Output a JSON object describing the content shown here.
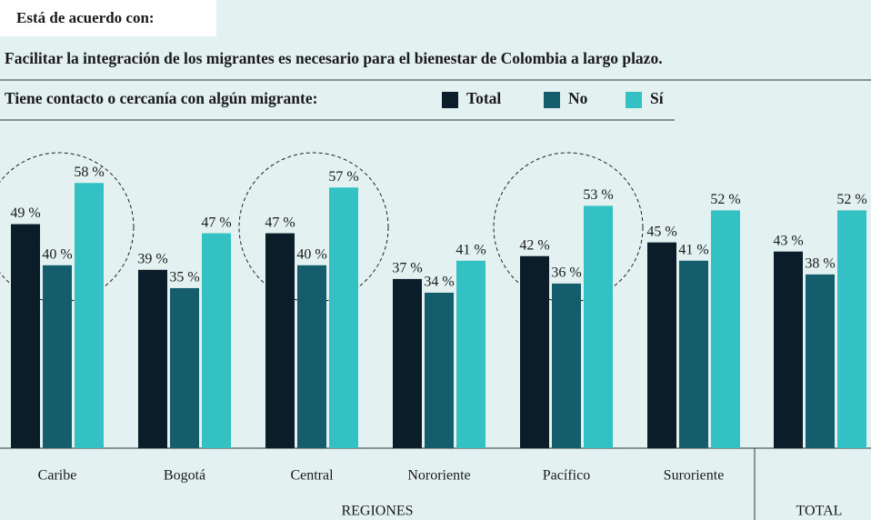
{
  "chart_data": {
    "type": "bar",
    "header": "Está de acuerdo con:",
    "title": "Facilitar la integración de los migrantes es necesario para el bienestar de Colombia a largo plazo.",
    "legend_title": "Tiene contacto o cercanía con algún migrante:",
    "categories": [
      "Caribe",
      "Bogotá",
      "Central",
      "Nororiente",
      "Pacífico",
      "Suroriente",
      null
    ],
    "group_labels": [
      "REGIONES",
      "TOTAL"
    ],
    "highlight": [
      0,
      2,
      4
    ],
    "ylim": [
      0,
      100
    ],
    "series": [
      {
        "name": "Total",
        "color": "#0b1d28",
        "values": [
          49,
          39,
          47,
          37,
          42,
          45,
          43
        ],
        "value_labels": [
          "49 %",
          "39 %",
          "47 %",
          "37 %",
          "42 %",
          "45 %",
          "43 %"
        ]
      },
      {
        "name": "No",
        "color": "#145d6c",
        "values": [
          40,
          35,
          40,
          34,
          36,
          41,
          38
        ],
        "value_labels": [
          "40 %",
          "35 %",
          "40 %",
          "34 %",
          "36 %",
          "41 %",
          "38 %"
        ]
      },
      {
        "name": "Sí",
        "color": "#34c1c3",
        "values": [
          58,
          47,
          57,
          41,
          53,
          52,
          52
        ],
        "value_labels": [
          "58 %",
          "47 %",
          "57 %",
          "41 %",
          "53 %",
          "52 %",
          "52 %"
        ]
      }
    ]
  }
}
